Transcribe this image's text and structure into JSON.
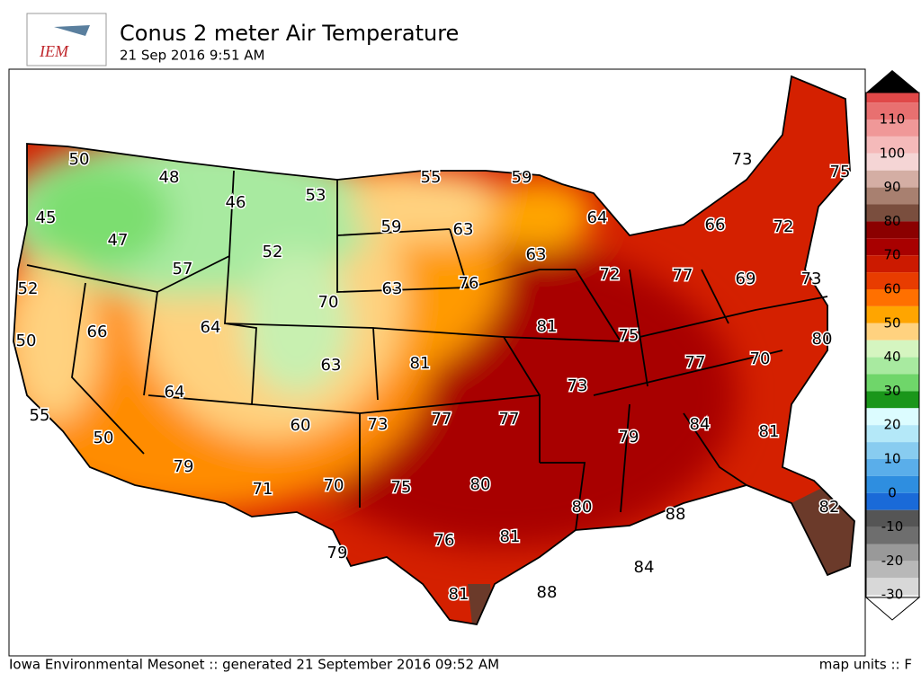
{
  "header": {
    "logo": "IEM",
    "title": "Conus 2 meter Air Temperature",
    "subtitle": "21 Sep 2016 9:51 AM"
  },
  "stations": [
    50,
    48,
    46,
    53,
    55,
    59,
    73,
    75,
    45,
    47,
    59,
    63,
    64,
    66,
    72,
    52,
    63,
    57,
    52,
    70,
    63,
    76,
    72,
    77,
    69,
    73,
    66,
    64,
    81,
    75,
    50,
    80,
    63,
    81,
    77,
    70,
    64,
    73,
    55,
    73,
    77,
    77,
    60,
    84,
    81,
    50,
    79,
    79,
    80,
    75,
    71,
    70,
    80,
    88,
    82,
    79,
    76,
    81,
    84,
    88,
    81
  ],
  "colorbar": {
    "ticks": [
      110,
      100,
      90,
      80,
      70,
      60,
      50,
      40,
      30,
      20,
      10,
      0,
      -10,
      -20,
      -30
    ],
    "colors": [
      "#e04848",
      "#e87070",
      "#f09898",
      "#f5baba",
      "#f5d5d5",
      "#d4aea4",
      "#a88070",
      "#7a4e3e",
      "#8b0000",
      "#a80000",
      "#cc1a00",
      "#e83c00",
      "#ff7000",
      "#ffa500",
      "#ffd27f",
      "#d5f5c0",
      "#a8eaa0",
      "#6fd66a",
      "#1a961a",
      "#dcfcff",
      "#b4e8f8",
      "#88ccf0",
      "#5aaeea",
      "#2e8ee0",
      "#1a6ad8",
      "#555555",
      "#6e6e6e",
      "#999999",
      "#b8b8b8",
      "#d8d8d8",
      "#eeeeee"
    ]
  },
  "footer": {
    "credit": "Iowa Environmental Mesonet :: generated 21 September 2016 09:52 AM",
    "units": "map units :: F"
  }
}
